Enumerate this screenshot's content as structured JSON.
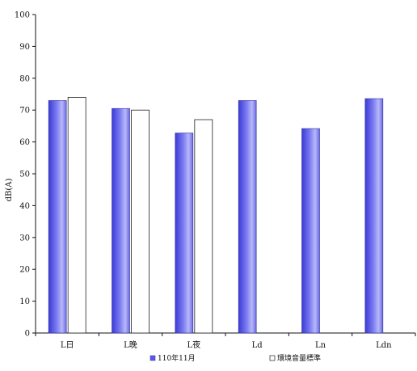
{
  "chart_data": {
    "type": "bar",
    "categories": [
      "L日",
      "L晚",
      "L夜",
      "Ld",
      "Ln",
      "Ldn"
    ],
    "ylabel": "dB(A)",
    "ylim": [
      0,
      100
    ],
    "ytick_step": 10,
    "grid": false,
    "legend_position": "bottom",
    "series": [
      {
        "name": "110年11月",
        "color": "#5a5ae6",
        "values": [
          73,
          70.5,
          62.8,
          73,
          64.2,
          73.6
        ]
      },
      {
        "name": "環境音量標準",
        "color": "#ffffff",
        "values": [
          74,
          70,
          67,
          null,
          null,
          null
        ]
      }
    ]
  }
}
